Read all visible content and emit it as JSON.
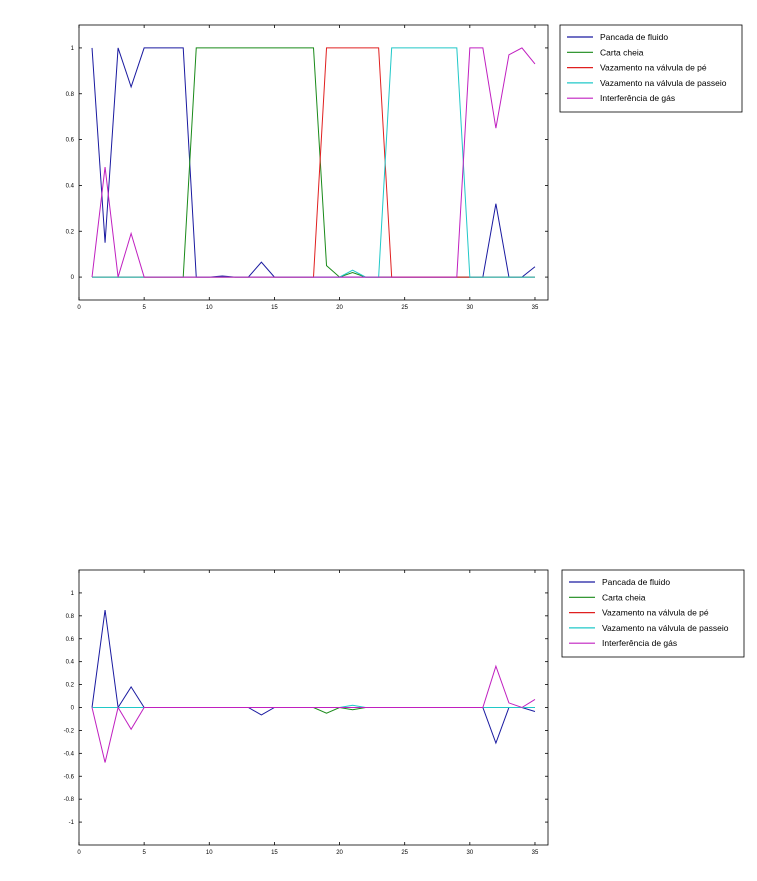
{
  "chart_data": [
    {
      "type": "line",
      "xlim": [
        0,
        36
      ],
      "ylim": [
        -0.1,
        1.1
      ],
      "xticks": [
        0,
        5,
        10,
        15,
        20,
        25,
        30,
        35
      ],
      "yticks": [
        0,
        0.2,
        0.4,
        0.6,
        0.8,
        1
      ],
      "ytick_labels": [
        "0",
        "0.2",
        "0.4",
        "0.6",
        "0.8",
        "1"
      ],
      "grid": false,
      "legend_position": "outside-top-right",
      "x": [
        1,
        2,
        3,
        4,
        5,
        6,
        7,
        8,
        9,
        10,
        11,
        12,
        13,
        14,
        15,
        16,
        17,
        18,
        19,
        20,
        21,
        22,
        23,
        24,
        25,
        26,
        27,
        28,
        29,
        30,
        31,
        32,
        33,
        34,
        35
      ],
      "series": [
        {
          "name": "Pancada de fluido",
          "color": "#1a1aa0",
          "values": [
            1,
            0.15,
            1,
            0.83,
            1,
            1,
            1,
            1,
            0,
            0,
            0.005,
            0,
            0,
            0.065,
            0,
            0,
            0,
            0,
            0,
            0,
            0,
            0,
            0,
            0,
            0,
            0,
            0,
            0,
            0,
            0,
            0,
            0.32,
            0,
            0,
            0.045
          ]
        },
        {
          "name": "Carta cheia",
          "color": "#1a8a1a",
          "values": [
            0,
            0,
            0,
            0,
            0,
            0,
            0,
            0,
            1,
            1,
            1,
            1,
            1,
            1,
            1,
            1,
            1,
            1,
            0.05,
            0,
            0.02,
            0,
            0,
            0,
            0,
            0,
            0,
            0,
            0,
            0,
            0,
            0,
            0,
            0,
            0
          ]
        },
        {
          "name": "Vazamento na válvula de pé",
          "color": "#e02020",
          "values": [
            0,
            0,
            0,
            0,
            0,
            0,
            0,
            0,
            0,
            0,
            0,
            0,
            0,
            0,
            0,
            0,
            0,
            0,
            1,
            1,
            1,
            1,
            1,
            0,
            0,
            0,
            0,
            0,
            0,
            0,
            0,
            0,
            0,
            0,
            0
          ]
        },
        {
          "name": "Vazamento na válvula de passeio",
          "color": "#20c8c8",
          "values": [
            0,
            0,
            0,
            0,
            0,
            0,
            0,
            0,
            0,
            0,
            0,
            0,
            0,
            0,
            0,
            0,
            0,
            0,
            0,
            0,
            0.03,
            0,
            0,
            1,
            1,
            1,
            1,
            1,
            1,
            0,
            0,
            0,
            0,
            0,
            0
          ]
        },
        {
          "name": "Interferência de gás",
          "color": "#c020c0",
          "values": [
            0,
            0.48,
            0,
            0.19,
            0,
            0,
            0,
            0,
            0,
            0,
            0,
            0,
            0,
            0,
            0,
            0,
            0,
            0,
            0,
            0,
            0,
            0,
            0,
            0,
            0,
            0,
            0,
            0,
            0,
            1,
            1,
            0.65,
            0.97,
            1,
            0.93
          ]
        }
      ]
    },
    {
      "type": "line",
      "xlim": [
        0,
        36
      ],
      "ylim": [
        -1.2,
        1.2
      ],
      "xticks": [
        0,
        5,
        10,
        15,
        20,
        25,
        30,
        35
      ],
      "yticks": [
        -1,
        -0.8,
        -0.6,
        -0.4,
        -0.2,
        0,
        0.2,
        0.4,
        0.6,
        0.8,
        1
      ],
      "ytick_labels": [
        "-1",
        "-0.8",
        "-0.6",
        "-0.4",
        "-0.2",
        "0",
        "0.2",
        "0.4",
        "0.6",
        "0.8",
        "1"
      ],
      "grid": false,
      "legend_position": "outside-top-right",
      "x": [
        1,
        2,
        3,
        4,
        5,
        6,
        7,
        8,
        9,
        10,
        11,
        12,
        13,
        14,
        15,
        16,
        17,
        18,
        19,
        20,
        21,
        22,
        23,
        24,
        25,
        26,
        27,
        28,
        29,
        30,
        31,
        32,
        33,
        34,
        35
      ],
      "series": [
        {
          "name": "Pancada de fluido",
          "color": "#1a1aa0",
          "values": [
            0,
            0.85,
            0,
            0.18,
            0,
            0,
            0,
            0,
            0,
            0,
            0,
            0,
            0,
            -0.065,
            0,
            0,
            0,
            0,
            0,
            0,
            0,
            0,
            0,
            0,
            0,
            0,
            0,
            0,
            0,
            0,
            0,
            -0.31,
            0,
            0,
            -0.035
          ]
        },
        {
          "name": "Carta cheia",
          "color": "#1a8a1a",
          "values": [
            0,
            0,
            0,
            0,
            0,
            0,
            0,
            0,
            0,
            0,
            0,
            0,
            0,
            0,
            0,
            0,
            0,
            0,
            -0.05,
            0,
            -0.02,
            0,
            0,
            0,
            0,
            0,
            0,
            0,
            0,
            0,
            0,
            0,
            0,
            0,
            0
          ]
        },
        {
          "name": "Vazamento na válvula de pé",
          "color": "#e02020",
          "values": [
            0,
            0,
            0,
            0,
            0,
            0,
            0,
            0,
            0,
            0,
            0,
            0,
            0,
            0,
            0,
            0,
            0,
            0,
            0,
            0,
            0,
            0,
            0,
            0,
            0,
            0,
            0,
            0,
            0,
            0,
            0,
            0,
            0,
            0,
            0
          ]
        },
        {
          "name": "Vazamento na válvula de passeio",
          "color": "#20c8c8",
          "values": [
            0,
            0,
            0,
            0,
            0,
            0,
            0,
            0,
            0,
            0,
            0,
            0,
            0,
            0,
            0,
            0,
            0,
            0,
            0,
            0,
            0.02,
            0,
            0,
            0,
            0,
            0,
            0,
            0,
            0,
            0,
            0,
            0,
            0,
            0,
            0
          ]
        },
        {
          "name": "Interferência de gás",
          "color": "#c020c0",
          "values": [
            0,
            -0.48,
            0,
            -0.19,
            0,
            0,
            0,
            0,
            0,
            0,
            0,
            0,
            0,
            0,
            0,
            0,
            0,
            0,
            0,
            0,
            0,
            0,
            0,
            0,
            0,
            0,
            0,
            0,
            0,
            0,
            0,
            0.36,
            0.04,
            0,
            0.07
          ]
        }
      ]
    }
  ]
}
